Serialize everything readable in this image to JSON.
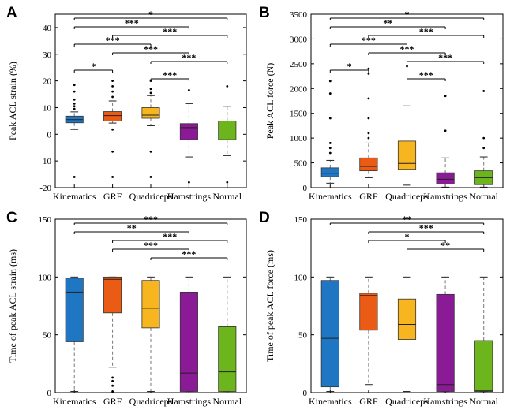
{
  "chart_data": [
    {
      "type": "boxplot",
      "panel": "A",
      "ylabel": "Peak ACL strain (%)",
      "ylim": [
        -20,
        45
      ],
      "yticks": [
        "-20",
        "-10",
        "0",
        "10",
        "20",
        "30",
        "40"
      ],
      "categories": [
        "Kinematics",
        "GRF",
        "Quadriceps",
        "Hamstrings",
        "Normal"
      ],
      "colors": [
        "#1f77c4",
        "#ea5b16",
        "#f7b51f",
        "#8b1a96",
        "#6db51d"
      ],
      "boxes": [
        {
          "q1": 4.3,
          "median": 5.5,
          "q3": 6.8,
          "wlow": 1.8,
          "whigh": 8.4,
          "outliers": [
            -16,
            9.5,
            10.5,
            11.5,
            13,
            16,
            18.5
          ]
        },
        {
          "q1": 5.0,
          "median": 7.0,
          "q3": 8.5,
          "wlow": 4.2,
          "whigh": 12.5,
          "outliers": [
            -16,
            -6.5,
            1.8,
            14,
            16,
            18,
            20
          ]
        },
        {
          "q1": 6.0,
          "median": 7.2,
          "q3": 10.0,
          "wlow": 3.2,
          "whigh": 14.5,
          "outliers": [
            -16,
            -6.5,
            15.5,
            17,
            20
          ]
        },
        {
          "q1": -2.0,
          "median": 2.5,
          "q3": 4.0,
          "wlow": -8.5,
          "whigh": 11.5,
          "outliers": [
            -18,
            16.5
          ]
        },
        {
          "q1": -2.0,
          "median": 3.5,
          "q3": 5.0,
          "wlow": -8.0,
          "whigh": 10.5,
          "outliers": [
            -18,
            18
          ]
        }
      ],
      "significance": [
        {
          "from": 0,
          "to": 4,
          "label": "*"
        },
        {
          "from": 0,
          "to": 3,
          "label": "***"
        },
        {
          "from": 1,
          "to": 4,
          "label": "***"
        },
        {
          "from": 0,
          "to": 2,
          "label": "***"
        },
        {
          "from": 1,
          "to": 3,
          "label": "***"
        },
        {
          "from": 2,
          "to": 4,
          "label": "***"
        },
        {
          "from": 0,
          "to": 1,
          "label": "*"
        },
        {
          "from": 2,
          "to": 3,
          "label": "***"
        }
      ]
    },
    {
      "type": "boxplot",
      "panel": "B",
      "ylabel": "Peak ACL force (N)",
      "ylim": [
        0,
        3500
      ],
      "yticks": [
        "0",
        "500",
        "1000",
        "1500",
        "2000",
        "2500",
        "3000",
        "3500"
      ],
      "categories": [
        "Kinematics",
        "GRF",
        "Quadriceps",
        "Hamstrings",
        "Normal"
      ],
      "colors": [
        "#1f77c4",
        "#ea5b16",
        "#f7b51f",
        "#8b1a96",
        "#6db51d"
      ],
      "boxes": [
        {
          "q1": 220,
          "median": 290,
          "q3": 400,
          "wlow": 90,
          "whigh": 550,
          "outliers": [
            700,
            800,
            900,
            1400,
            1900,
            2150
          ]
        },
        {
          "q1": 340,
          "median": 430,
          "q3": 600,
          "wlow": 200,
          "whigh": 900,
          "outliers": [
            1000,
            1100,
            1400,
            1800,
            2300,
            2400
          ]
        },
        {
          "q1": 370,
          "median": 490,
          "q3": 940,
          "wlow": 50,
          "whigh": 1650,
          "outliers": [
            2450
          ]
        },
        {
          "q1": 70,
          "median": 170,
          "q3": 300,
          "wlow": 10,
          "whigh": 600,
          "outliers": [
            1150,
            1850
          ]
        },
        {
          "q1": 60,
          "median": 200,
          "q3": 340,
          "wlow": 10,
          "whigh": 620,
          "outliers": [
            800,
            1000,
            1950
          ]
        }
      ],
      "significance": [
        {
          "from": 0,
          "to": 4,
          "label": "*"
        },
        {
          "from": 0,
          "to": 3,
          "label": "**"
        },
        {
          "from": 1,
          "to": 4,
          "label": "***"
        },
        {
          "from": 0,
          "to": 2,
          "label": "***"
        },
        {
          "from": 1,
          "to": 3,
          "label": "***"
        },
        {
          "from": 2,
          "to": 4,
          "label": "***"
        },
        {
          "from": 0,
          "to": 1,
          "label": "*"
        },
        {
          "from": 2,
          "to": 3,
          "label": "***"
        }
      ]
    },
    {
      "type": "boxplot",
      "panel": "C",
      "ylabel": "Time of peak ACL strain (ms)",
      "ylim": [
        0,
        150
      ],
      "yticks": [
        "0",
        "50",
        "100",
        "150"
      ],
      "categories": [
        "Kinematics",
        "GRF",
        "Quadriceps",
        "Hamstrings",
        "Normal"
      ],
      "colors": [
        "#1f77c4",
        "#ea5b16",
        "#f7b51f",
        "#8b1a96",
        "#6db51d"
      ],
      "boxes": [
        {
          "q1": 44,
          "median": 87,
          "q3": 99,
          "wlow": 1,
          "whigh": 100,
          "outliers": []
        },
        {
          "q1": 69,
          "median": 98,
          "q3": 100,
          "wlow": 22,
          "whigh": 100,
          "outliers": [
            1,
            6,
            10,
            13
          ]
        },
        {
          "q1": 56,
          "median": 73,
          "q3": 97,
          "wlow": 1,
          "whigh": 100,
          "outliers": []
        },
        {
          "q1": 1,
          "median": 17,
          "q3": 87,
          "wlow": 1,
          "whigh": 100,
          "outliers": []
        },
        {
          "q1": 1,
          "median": 18,
          "q3": 57,
          "wlow": 1,
          "whigh": 100,
          "outliers": []
        }
      ],
      "significance": [
        {
          "from": 0,
          "to": 4,
          "label": "***"
        },
        {
          "from": 0,
          "to": 3,
          "label": "**"
        },
        {
          "from": 1,
          "to": 4,
          "label": "***"
        },
        {
          "from": 1,
          "to": 3,
          "label": "***"
        },
        {
          "from": 2,
          "to": 4,
          "label": "***"
        }
      ]
    },
    {
      "type": "boxplot",
      "panel": "D",
      "ylabel": "Time of peak ACL force (ms)",
      "ylim": [
        0,
        150
      ],
      "yticks": [
        "0",
        "50",
        "100",
        "150"
      ],
      "categories": [
        "Kinematics",
        "GRF",
        "Quadriceps",
        "Hamstrings",
        "Normal"
      ],
      "colors": [
        "#1f77c4",
        "#ea5b16",
        "#f7b51f",
        "#8b1a96",
        "#6db51d"
      ],
      "boxes": [
        {
          "q1": 5,
          "median": 47,
          "q3": 97,
          "wlow": 1,
          "whigh": 100,
          "outliers": []
        },
        {
          "q1": 54,
          "median": 84,
          "q3": 86,
          "wlow": 7,
          "whigh": 100,
          "outliers": []
        },
        {
          "q1": 46,
          "median": 59,
          "q3": 81,
          "wlow": 1,
          "whigh": 100,
          "outliers": []
        },
        {
          "q1": 1,
          "median": 7,
          "q3": 85,
          "wlow": 1,
          "whigh": 100,
          "outliers": []
        },
        {
          "q1": 1,
          "median": 1.5,
          "q3": 45,
          "wlow": 1,
          "whigh": 100,
          "outliers": []
        }
      ],
      "significance": [
        {
          "from": 0,
          "to": 4,
          "label": "**"
        },
        {
          "from": 1,
          "to": 4,
          "label": "***"
        },
        {
          "from": 1,
          "to": 3,
          "label": "*"
        },
        {
          "from": 2,
          "to": 4,
          "label": "**"
        }
      ]
    }
  ]
}
